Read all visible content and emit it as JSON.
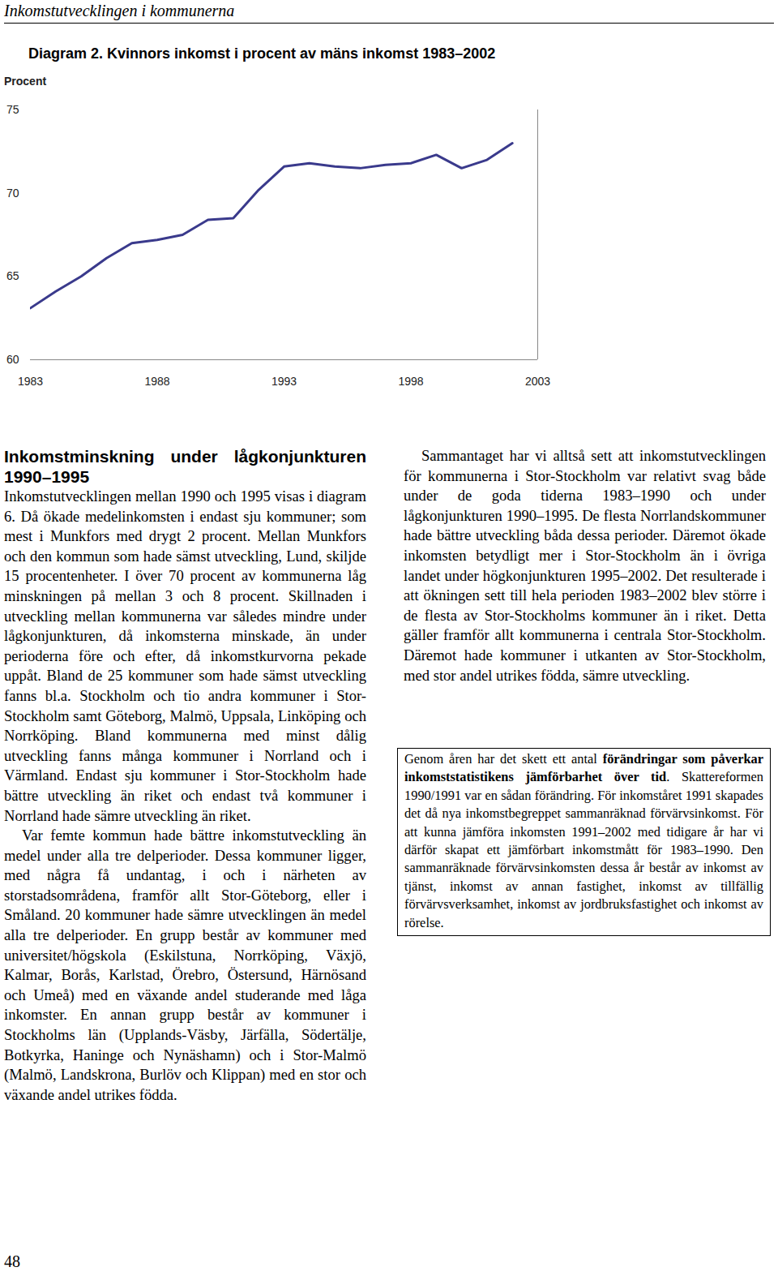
{
  "header": {
    "running_title": "Inkomstutvecklingen i kommunerna"
  },
  "chart_data": {
    "type": "line",
    "title": "Diagram 2. Kvinnors inkomst i procent av mäns inkomst 1983–2002",
    "ylabel": "Procent",
    "x": [
      1983,
      1984,
      1985,
      1986,
      1987,
      1988,
      1989,
      1990,
      1991,
      1992,
      1993,
      1994,
      1995,
      1996,
      1997,
      1998,
      1999,
      2000,
      2001,
      2002
    ],
    "values": [
      63.1,
      64.1,
      65.0,
      66.1,
      67.0,
      67.2,
      67.5,
      68.4,
      68.5,
      70.2,
      71.6,
      71.8,
      71.6,
      71.5,
      71.7,
      71.8,
      72.3,
      71.5,
      72.0,
      73.0
    ],
    "color": "#3a3a8c",
    "xlim": [
      1983,
      2003
    ],
    "xticks": [
      1983,
      1988,
      1993,
      1998,
      2003
    ],
    "ylim": [
      60,
      75
    ],
    "yticks": [
      60,
      65,
      70,
      75
    ],
    "grid": false
  },
  "columns": {
    "left": {
      "heading": "Inkomstminskning under lågkonjunkturen 1990–1995",
      "paragraphs": [
        "Inkomstutvecklingen mellan 1990 och 1995 visas i diagram 6. Då ökade medelinkomsten i endast sju kommuner; som mest i Munkfors med drygt 2 procent. Mellan Munkfors och den kommun som hade sämst utveckling, Lund, skiljde 15 procentenheter. I över 70 procent av kommunerna låg minskningen på mellan 3 och 8 procent. Skillnaden i utveckling mellan kommunerna var således mindre under lågkonjunkturen, då inkomsterna minskade, än under perioderna före och efter, då inkomstkurvorna pekade uppåt. Bland de 25 kommuner som hade sämst utveckling fanns bl.a. Stockholm och tio andra kommuner i Stor-Stockholm samt Göteborg, Malmö, Uppsala, Linköping och Norrköping. Bland kommunerna med minst dålig utveckling fanns många kommuner i Norrland och i Värmland. Endast sju kommuner i Stor-Stockholm hade bättre utveckling än riket och endast två kommuner i Norrland hade sämre utveckling än riket.",
        "Var femte kommun hade bättre inkomstutveckling än medel under alla tre delperioder. Dessa kommuner ligger, med några få undantag, i och i närheten av storstadsområdena, framför allt Stor-Göteborg, eller i Småland. 20 kommuner hade sämre utvecklingen än medel alla tre delperioder. En grupp består av kommuner med universitet/högskola (Eskilstuna, Norrköping, Växjö, Kalmar, Borås, Karlstad, Örebro, Östersund, Härnösand och Umeå) med en växande andel studerande med låga inkomster. En annan grupp består av kommuner i Stockholms län (Upplands-Väsby, Järfälla, Södertälje, Botkyrka, Haninge och Nynäshamn) och i Stor-Malmö (Malmö, Landskrona, Burlöv och Klippan) med en stor och växande andel utrikes födda."
      ]
    },
    "right": {
      "paragraphs": [
        "Sammantaget har vi alltså sett att inkomstutvecklingen för kommunerna i Stor-Stockholm var relativt svag både under de goda tiderna 1983–1990 och under lågkonjunkturen 1990–1995. De flesta Norrlandskommuner hade bättre utveckling båda dessa perioder. Däremot ökade inkomsten betydligt mer i Stor-Stockholm än i övriga landet under högkonjunkturen 1995–2002. Det resulterade i att ökningen sett till hela perioden 1983–2002 blev större i de flesta av Stor-Stockholms kommuner än i riket. Detta gäller framför allt kommunerna i centrala Stor-Stockholm. Däremot hade kommuner i utkanten av Stor-Stockholm, med stor andel utrikes födda, sämre utveckling."
      ],
      "note": [
        {
          "text": "Genom åren har det skett ett antal ",
          "bold": false
        },
        {
          "text": "förändringar som påverkar inkomststatistikens jämförbarhet över tid",
          "bold": true
        },
        {
          "text": ". Skattereformen 1990/1991 var en sådan förändring. För inkomståret 1991 skapades det då nya inkomstbegreppet sammanräknad förvärvsinkomst. För att kunna jämföra inkomsten 1991–2002 med tidigare år har vi därför skapat ett jämförbart inkomstmått för 1983–1990. Den sammanräknade förvärvsinkomsten dessa år består av inkomst av tjänst, inkomst av annan fastighet, inkomst av tillfällig förvärvsverksamhet, inkomst av jordbruksfastighet och inkomst av rörelse.",
          "bold": false
        }
      ]
    }
  },
  "footer": {
    "page_number": 48
  }
}
